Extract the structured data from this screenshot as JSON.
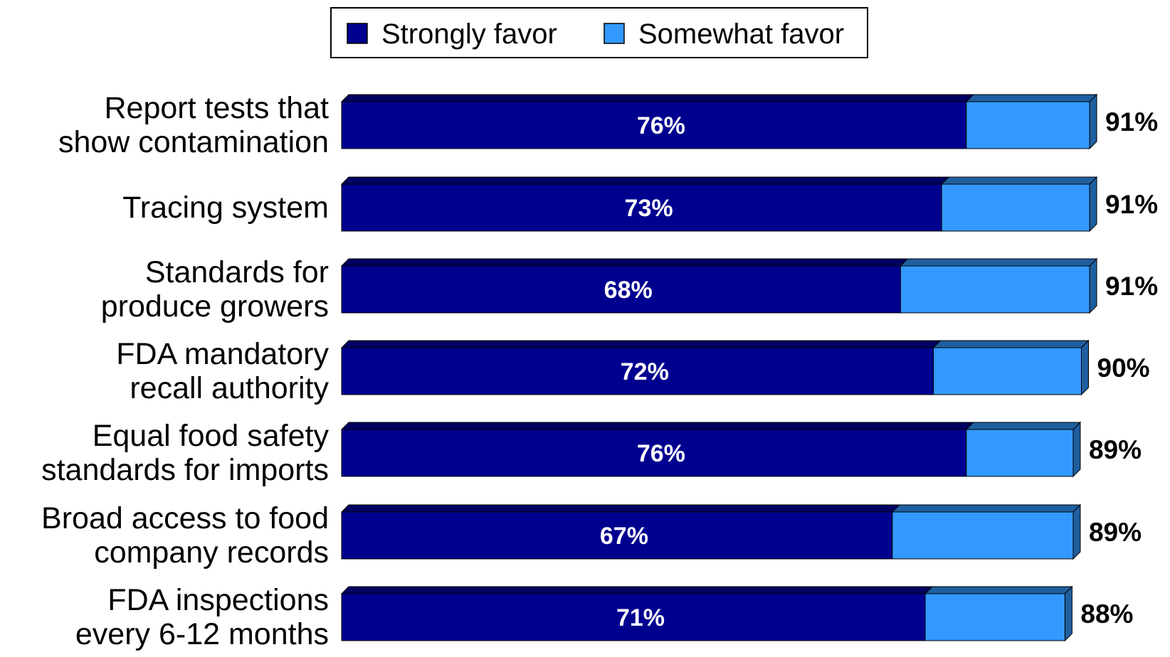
{
  "chart_data": {
    "type": "bar",
    "orientation": "horizontal",
    "stacked": true,
    "categories": [
      [
        "Report tests that",
        "show contamination"
      ],
      [
        "Tracing system"
      ],
      [
        "Standards for",
        "produce growers"
      ],
      [
        "FDA mandatory",
        "recall authority"
      ],
      [
        "Equal food safety",
        "standards for imports"
      ],
      [
        "Broad access to food",
        "company records"
      ],
      [
        "FDA inspections",
        "every 6-12 months"
      ]
    ],
    "series": [
      {
        "name": "Strongly favor",
        "color": "#00008f",
        "values": [
          76,
          73,
          68,
          72,
          76,
          67,
          71
        ]
      },
      {
        "name": "Somewhat favor",
        "color": "#3399ff",
        "values": [
          15,
          18,
          23,
          18,
          13,
          22,
          17
        ]
      }
    ],
    "segment_labels": [
      "76%",
      "73%",
      "68%",
      "72%",
      "76%",
      "67%",
      "71%"
    ],
    "totals": [
      91,
      91,
      91,
      90,
      89,
      89,
      88
    ],
    "total_labels": [
      "91%",
      "91%",
      "91%",
      "90%",
      "89%",
      "89%",
      "88%"
    ],
    "xlim": [
      0,
      100
    ],
    "grid": false,
    "legend_position": "top"
  }
}
